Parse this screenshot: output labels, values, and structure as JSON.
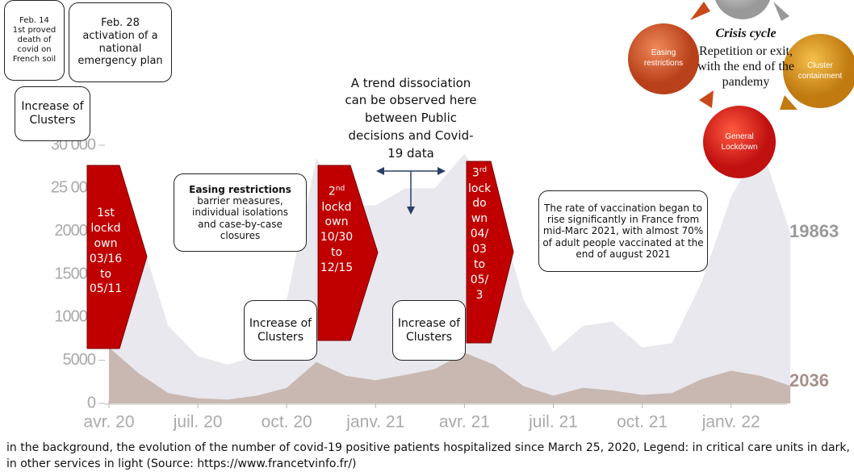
{
  "chart_data": {
    "type": "area",
    "x": [
      "2020-04",
      "2020-05",
      "2020-06",
      "2020-07",
      "2020-08",
      "2020-09",
      "2020-10",
      "2020-11",
      "2020-12",
      "2021-01",
      "2021-02",
      "2021-03",
      "2021-04",
      "2021-05",
      "2021-06",
      "2021-07",
      "2021-08",
      "2021-09",
      "2021-10",
      "2021-11",
      "2021-12",
      "2022-01",
      "2022-02",
      "2022-03"
    ],
    "series": [
      {
        "color": "#e8e8ee",
        "values": [
          27000,
          20000,
          9000,
          5500,
          4500,
          5500,
          12000,
          28500,
          23000,
          23000,
          25000,
          25000,
          29000,
          24000,
          12000,
          6000,
          9000,
          9500,
          6500,
          7000,
          14000,
          24000,
          30000,
          19863
        ]
      },
      {
        "color": "#c9b8b1",
        "values": [
          6500,
          3500,
          1200,
          600,
          450,
          900,
          1800,
          4800,
          3200,
          2700,
          3300,
          4000,
          5900,
          4500,
          2000,
          900,
          1800,
          1500,
          1000,
          1200,
          2800,
          3800,
          3200,
          2036
        ]
      }
    ],
    "xticks": [
      {
        "value": "2020-04",
        "label": "avr. 20"
      },
      {
        "value": "2020-07",
        "label": "juil. 20"
      },
      {
        "value": "2020-10",
        "label": "oct. 20"
      },
      {
        "value": "2021-01",
        "label": "janv. 21"
      },
      {
        "value": "2021-04",
        "label": "avr. 21"
      },
      {
        "value": "2021-07",
        "label": "juil. 21"
      },
      {
        "value": "2021-10",
        "label": "oct. 21"
      },
      {
        "value": "2022-01",
        "label": "janv. 22"
      }
    ],
    "ylim": [
      0,
      30000
    ],
    "yticks": [
      0,
      {
        "value": 5000,
        "label": "5000"
      },
      {
        "value": 10000,
        "label": "10000"
      },
      {
        "value": 15000,
        "label": "15000"
      },
      {
        "value": 20000,
        "label": "20000"
      },
      {
        "value": 25000,
        "label": "25 000"
      },
      {
        "value": 30000,
        "label": "30 000"
      }
    ]
  },
  "boxes": [
    {
      "lines": [
        "Feb. 14",
        "1st proved",
        "death of",
        "covid on",
        "French soil"
      ]
    },
    {
      "lines": [
        "Feb. 28",
        "activation of a",
        "national",
        "emergency plan"
      ]
    },
    {
      "lines": [
        "Increase of",
        "Clusters"
      ]
    },
    {
      "lines": [
        "A trend dissociation",
        "can be observed here",
        "between Public",
        "decisions and Covid-",
        "19 data"
      ]
    },
    {
      "title": "Easing restrictions",
      "lines": [
        "barrier measures,",
        "individual isolations",
        "and case-by-case",
        "closures"
      ]
    },
    {
      "lines": [
        "Increase of",
        "Clusters"
      ]
    },
    {
      "lines": [
        "Increase of",
        "Clusters"
      ]
    },
    {
      "lines": [
        "The rate of vaccination began to",
        "rise significantly in France from",
        "mid-Marc 2021, with almost 70%",
        "of adult people vaccinated at the",
        "end of august 2021"
      ]
    }
  ],
  "lockdowns": [
    {
      "lines": [
        "1st",
        "lockd",
        "own",
        "03/16",
        "to",
        "05/11"
      ]
    },
    {
      "ordinal": "2",
      "suffix": "nd",
      "lines": [
        "lockd",
        "own",
        "10/30",
        "to",
        "12/15"
      ]
    },
    {
      "ordinal": "3",
      "suffix": "rd",
      "lines": [
        "lock",
        "do",
        "wn",
        "04/",
        "03",
        "to",
        "05/",
        "3"
      ]
    }
  ],
  "cycle": {
    "title": "Crisis cycle",
    "lines": [
      "Repetition or exit,",
      "with the end of the",
      "pandemy"
    ],
    "stages": [
      {
        "lines": [
          "Easing",
          "restrictions"
        ]
      },
      {
        "lines": [
          "Cluster",
          "containment"
        ]
      },
      {
        "lines": [
          "General",
          "Lockdown"
        ]
      }
    ]
  },
  "caption": "in the background, the evolution of the number of covid-19 positive patients hospitalized since March 25, 2020, Legend: in critical care units in dark, in other services in light (Source: https://www.francetvinfo.fr/)"
}
